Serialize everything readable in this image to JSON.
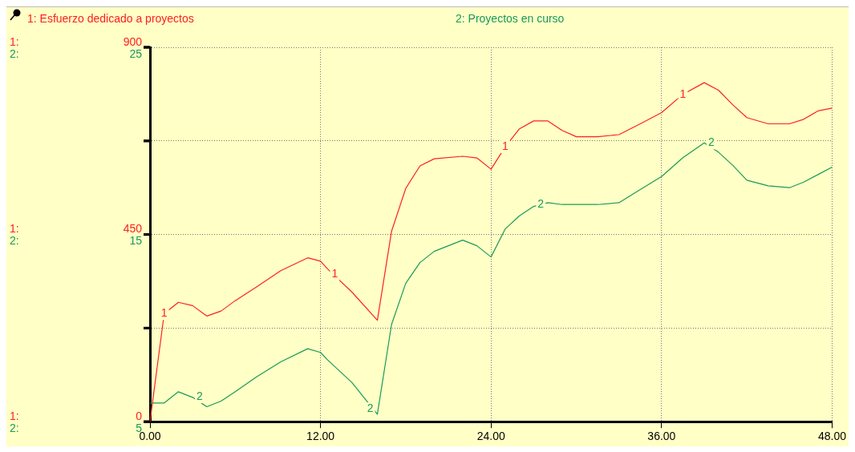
{
  "chart_data": {
    "type": "line",
    "x": [
      0,
      1,
      2,
      3,
      4,
      5,
      6,
      7.5,
      9.2,
      11.1,
      12,
      12.5,
      14.2,
      16,
      17,
      18,
      19,
      20,
      22,
      23,
      24,
      25,
      26,
      27,
      28,
      29,
      30,
      31.5,
      33,
      34.5,
      36,
      37.5,
      39,
      40,
      41,
      42,
      43.5,
      45,
      46,
      47,
      48
    ],
    "series": [
      {
        "name": "1: Esfuerzo dedicado a proyectos",
        "color": "#ff2020",
        "values": [
          0,
          260,
          287,
          279,
          254,
          266,
          291,
          324,
          363,
          394,
          386,
          367,
          312,
          244,
          458,
          561,
          615,
          632,
          638,
          634,
          607,
          661,
          704,
          723,
          723,
          700,
          685,
          685,
          690,
          716,
          743,
          787,
          815,
          797,
          762,
          731,
          716,
          716,
          727,
          747,
          754
        ]
      },
      {
        "name": "2: Proyectos en curso",
        "color": "#1a9a5a",
        "axis": "y2",
        "values": [
          6.0,
          6.0,
          6.6,
          6.3,
          5.8,
          6.1,
          6.6,
          7.4,
          8.2,
          8.9,
          8.7,
          8.3,
          7.1,
          5.4,
          10.2,
          12.4,
          13.5,
          14.1,
          14.7,
          14.4,
          13.8,
          15.3,
          16.0,
          16.5,
          16.7,
          16.6,
          16.6,
          16.6,
          16.7,
          17.4,
          18.1,
          19.1,
          19.9,
          19.4,
          18.7,
          17.9,
          17.6,
          17.5,
          17.8,
          18.2,
          18.6
        ]
      }
    ],
    "xlim": [
      0,
      48
    ],
    "xticks": [
      {
        "value": 0,
        "label": "0.00"
      },
      {
        "value": 12,
        "label": "12.00"
      },
      {
        "value": 24,
        "label": "24.00"
      },
      {
        "value": 36,
        "label": "36.00"
      },
      {
        "value": 48,
        "label": "48.00"
      }
    ],
    "ylim": [
      0,
      900
    ],
    "yticks": [
      0,
      {
        "value": 225,
        "label": null
      },
      450,
      {
        "value": 675,
        "label": null
      },
      900
    ],
    "y2lim": [
      5,
      25
    ],
    "y2ticks": [
      5,
      {
        "value": 10,
        "label": null
      },
      15,
      {
        "value": 20,
        "label": null
      },
      25
    ],
    "annotations": [
      "1:",
      "2:",
      "1:",
      "2:",
      "1:",
      "2:",
      {
        "text": "1",
        "x": 1,
        "y": 260
      },
      {
        "text": "1",
        "x": 13,
        "y": 354
      },
      {
        "text": "1",
        "x": 25,
        "y": 661
      },
      {
        "text": "1",
        "x": 37.5,
        "y": 787
      },
      {
        "text": "2",
        "x": 3.5,
        "y": 60
      },
      {
        "text": "2",
        "x": 15.5,
        "y": 31
      },
      {
        "text": "2",
        "x": 27.5,
        "y": 522
      },
      {
        "text": "2",
        "x": 39.5,
        "y": 670
      }
    ],
    "grid": true,
    "legend": "top"
  }
}
